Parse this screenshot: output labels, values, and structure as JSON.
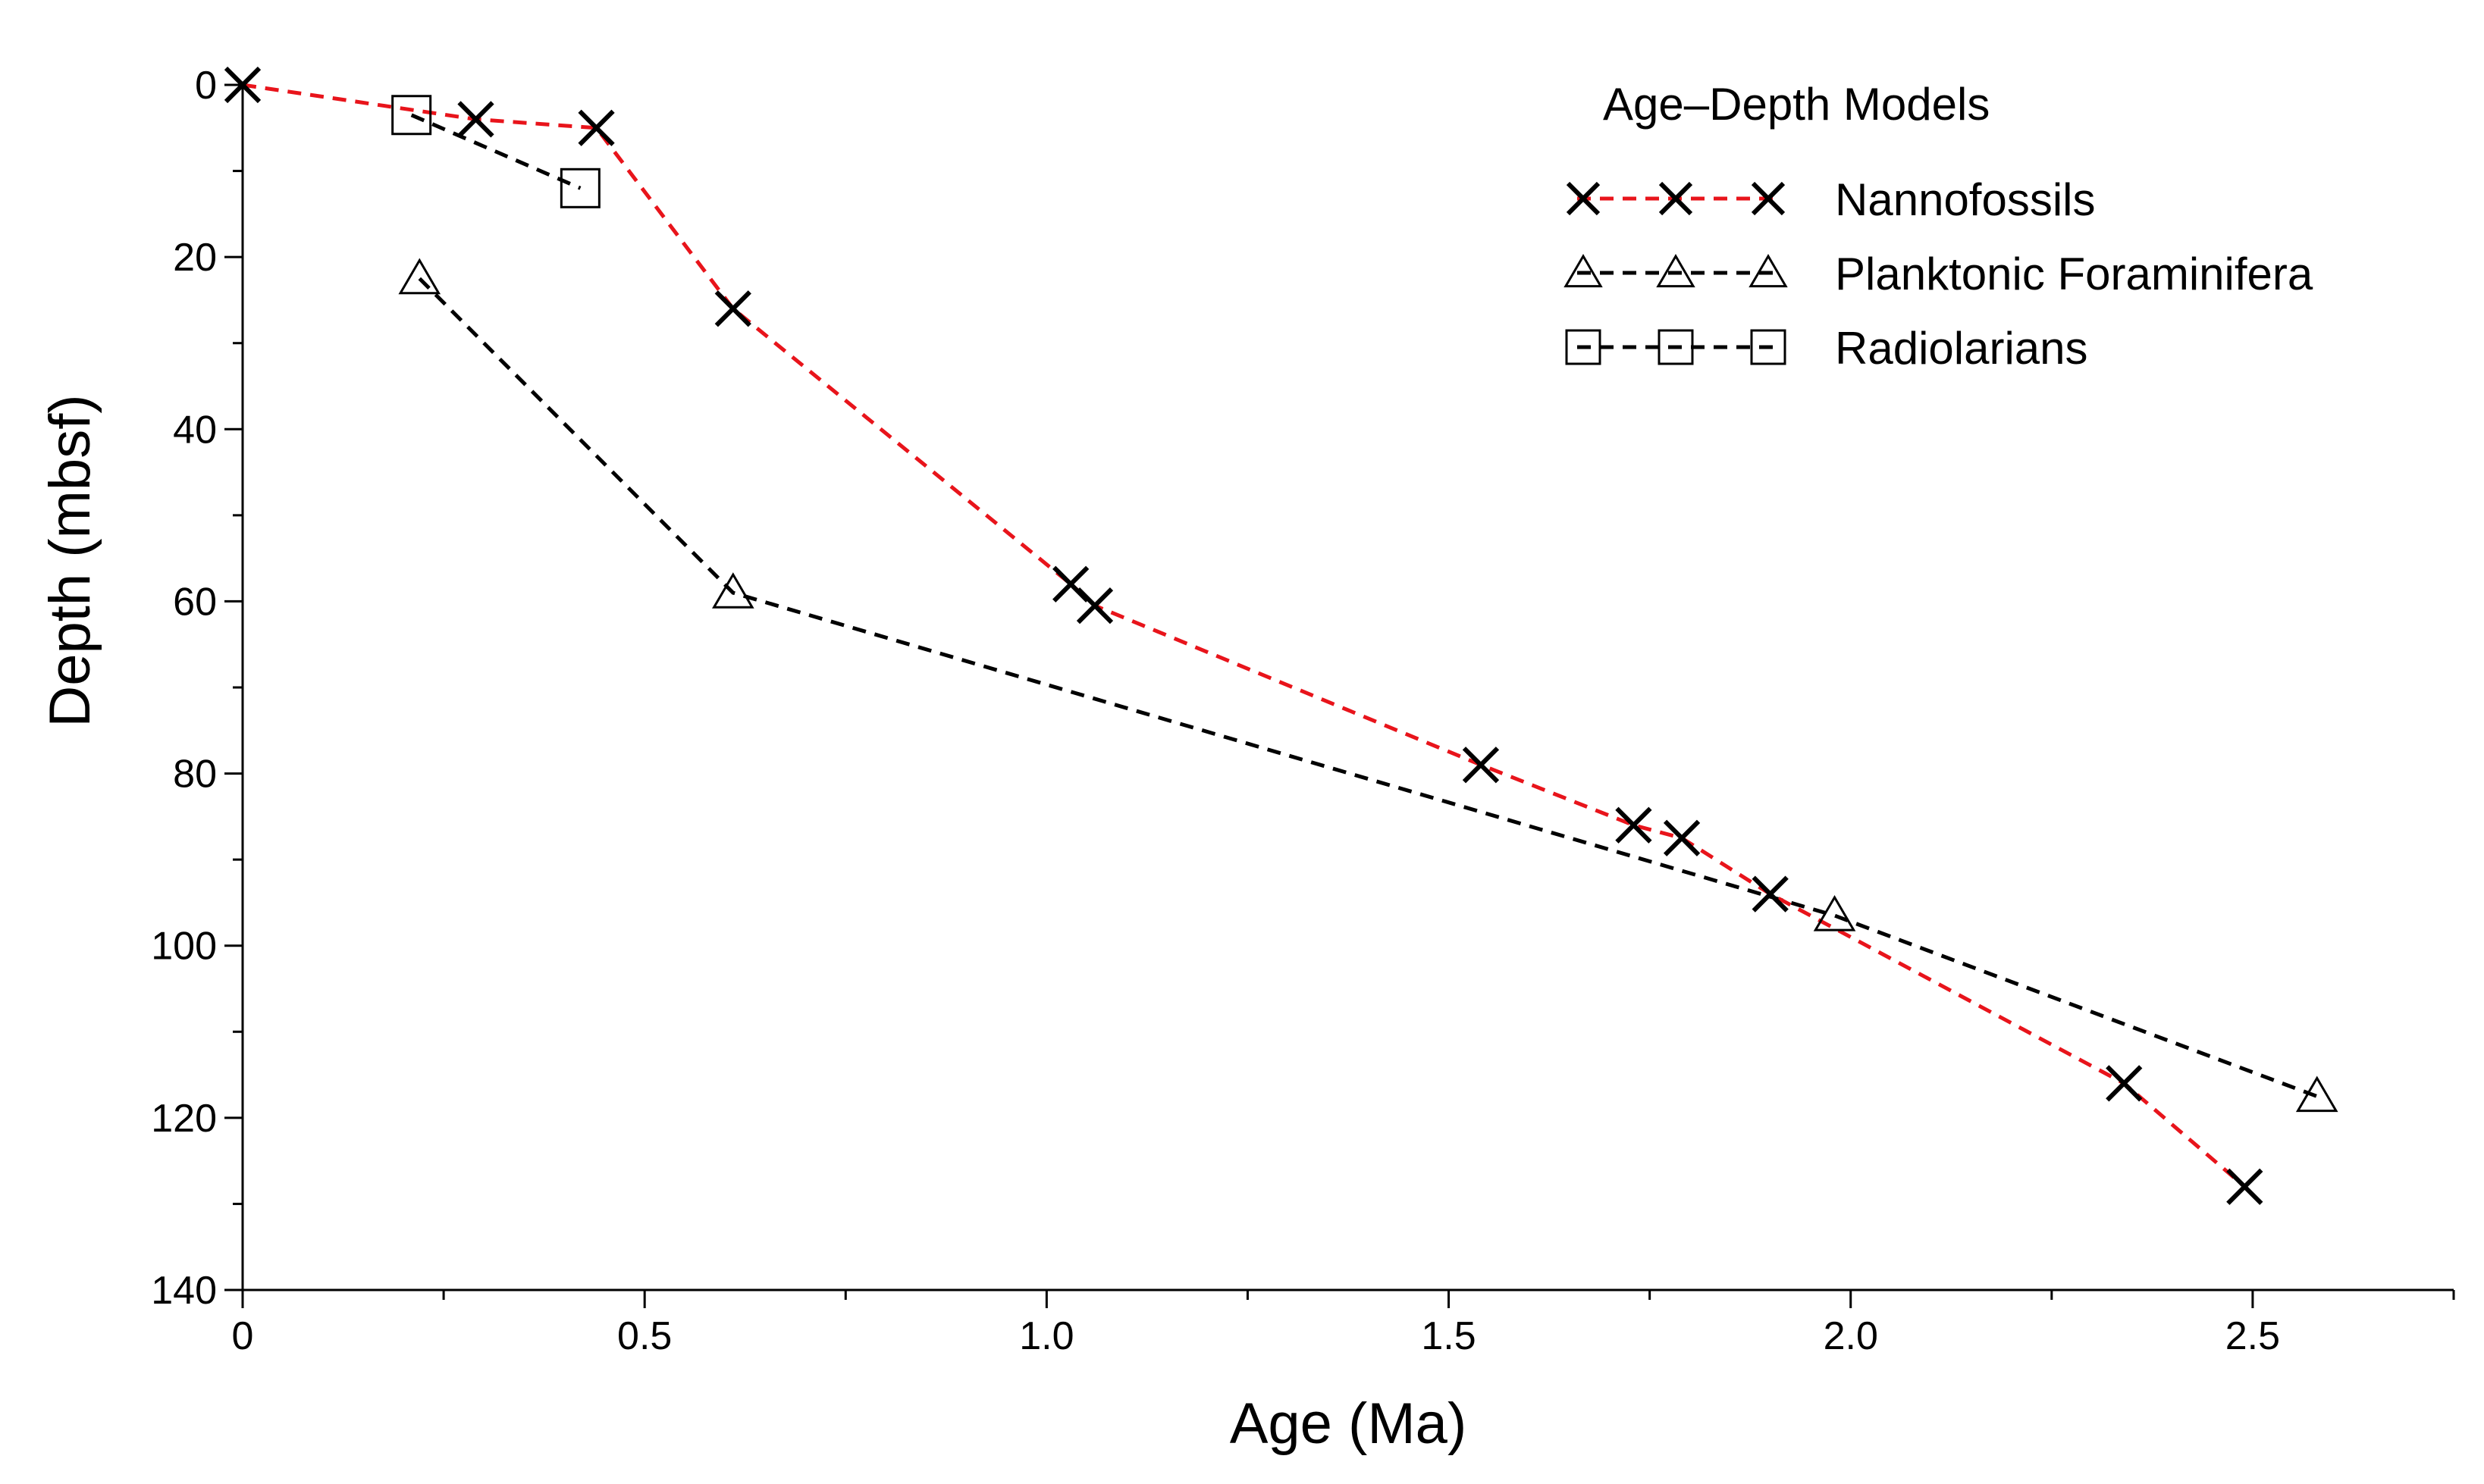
{
  "chart_data": {
    "type": "line",
    "title": "",
    "xlabel": "Age (Ma)",
    "ylabel": "Depth (mbsf)",
    "xlim": [
      0,
      2.75
    ],
    "ylim": [
      140,
      0
    ],
    "y_inverted": true,
    "x_ticks": [
      {
        "value": 0,
        "label": "0"
      },
      {
        "value": 0.5,
        "label": "0.5"
      },
      {
        "value": 1.0,
        "label": "1.0"
      },
      {
        "value": 1.5,
        "label": "1.5"
      },
      {
        "value": 2.0,
        "label": "2.0"
      },
      {
        "value": 2.5,
        "label": "2.5"
      }
    ],
    "y_ticks": [
      {
        "value": 0,
        "label": "0"
      },
      {
        "value": 20,
        "label": "20"
      },
      {
        "value": 40,
        "label": "40"
      },
      {
        "value": 60,
        "label": "60"
      },
      {
        "value": 80,
        "label": "80"
      },
      {
        "value": 100,
        "label": "100"
      },
      {
        "value": 120,
        "label": "120"
      },
      {
        "value": 140,
        "label": "140"
      }
    ],
    "legend": {
      "title": "Age–Depth Models",
      "placement": "top-right"
    },
    "series": [
      {
        "name": "Nannofossils",
        "marker": "x",
        "line_color": "#e8141b",
        "points": [
          {
            "x": 0.0,
            "y": 0
          },
          {
            "x": 0.29,
            "y": 4
          },
          {
            "x": 0.44,
            "y": 5
          },
          {
            "x": 0.61,
            "y": 26
          },
          {
            "x": 1.03,
            "y": 58
          },
          {
            "x": 1.06,
            "y": 60.5
          },
          {
            "x": 1.54,
            "y": 79
          },
          {
            "x": 1.73,
            "y": 86
          },
          {
            "x": 1.79,
            "y": 87.5
          },
          {
            "x": 1.9,
            "y": 94
          },
          {
            "x": 2.34,
            "y": 116
          },
          {
            "x": 2.49,
            "y": 128
          }
        ]
      },
      {
        "name": "Planktonic Foraminifera",
        "marker": "triangle",
        "line_color": "#000000",
        "points": [
          {
            "x": 0.22,
            "y": 22.5
          },
          {
            "x": 0.61,
            "y": 59
          },
          {
            "x": 1.98,
            "y": 96.5
          },
          {
            "x": 2.58,
            "y": 117.5
          }
        ]
      },
      {
        "name": "Radiolarians",
        "marker": "square",
        "line_color": "#000000",
        "points": [
          {
            "x": 0.21,
            "y": 3.5
          },
          {
            "x": 0.42,
            "y": 12
          }
        ]
      }
    ]
  }
}
